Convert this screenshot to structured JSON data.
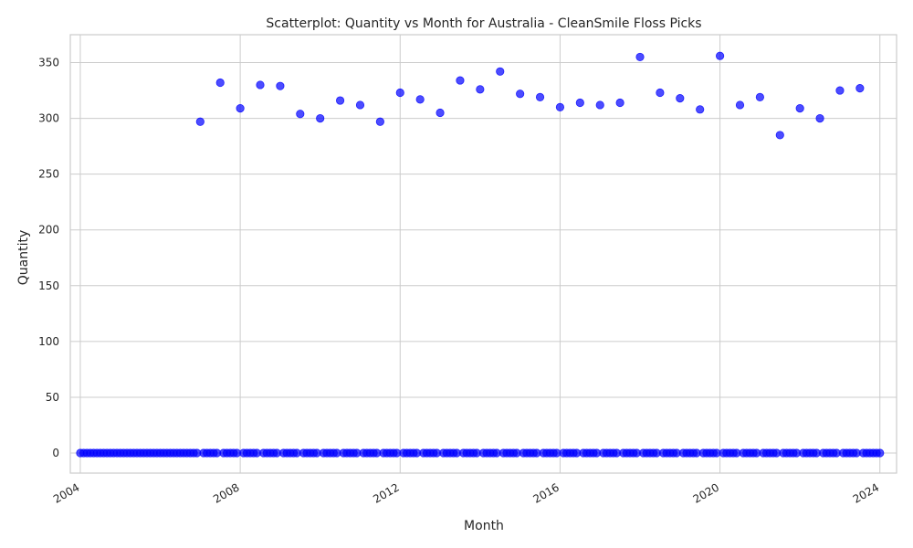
{
  "chart_data": {
    "type": "scatter",
    "title": "Scatterplot: Quantity vs Month for Australia - CleanSmile Floss Picks",
    "xlabel": "Month",
    "ylabel": "Quantity",
    "x_range": [
      "2003-10",
      "2024-06"
    ],
    "ylim": [
      -18,
      375
    ],
    "x_ticks": [
      "2004",
      "2008",
      "2012",
      "2016",
      "2020",
      "2024"
    ],
    "y_ticks": [
      "0",
      "50",
      "100",
      "150",
      "200",
      "250",
      "300",
      "350"
    ],
    "grid": true,
    "marker_color": "#0000ff",
    "start_month": "2004-01",
    "end_month": "2024-01",
    "nonzero_points": [
      {
        "x": "2007-01",
        "y": 297
      },
      {
        "x": "2007-07",
        "y": 332
      },
      {
        "x": "2008-01",
        "y": 309
      },
      {
        "x": "2008-07",
        "y": 330
      },
      {
        "x": "2009-01",
        "y": 329
      },
      {
        "x": "2009-07",
        "y": 304
      },
      {
        "x": "2010-01",
        "y": 300
      },
      {
        "x": "2010-07",
        "y": 316
      },
      {
        "x": "2011-01",
        "y": 312
      },
      {
        "x": "2011-07",
        "y": 297
      },
      {
        "x": "2012-01",
        "y": 323
      },
      {
        "x": "2012-07",
        "y": 317
      },
      {
        "x": "2013-01",
        "y": 305
      },
      {
        "x": "2013-07",
        "y": 334
      },
      {
        "x": "2014-01",
        "y": 326
      },
      {
        "x": "2014-07",
        "y": 342
      },
      {
        "x": "2015-01",
        "y": 322
      },
      {
        "x": "2015-07",
        "y": 319
      },
      {
        "x": "2016-01",
        "y": 310
      },
      {
        "x": "2016-07",
        "y": 314
      },
      {
        "x": "2017-01",
        "y": 312
      },
      {
        "x": "2017-07",
        "y": 314
      },
      {
        "x": "2018-01",
        "y": 355
      },
      {
        "x": "2018-07",
        "y": 323
      },
      {
        "x": "2019-01",
        "y": 318
      },
      {
        "x": "2019-07",
        "y": 308
      },
      {
        "x": "2020-01",
        "y": 356
      },
      {
        "x": "2020-07",
        "y": 312
      },
      {
        "x": "2021-01",
        "y": 319
      },
      {
        "x": "2021-07",
        "y": 285
      },
      {
        "x": "2022-01",
        "y": 309
      },
      {
        "x": "2022-07",
        "y": 300
      },
      {
        "x": "2023-01",
        "y": 325
      },
      {
        "x": "2023-07",
        "y": 327
      }
    ],
    "other_months_value": 0
  }
}
